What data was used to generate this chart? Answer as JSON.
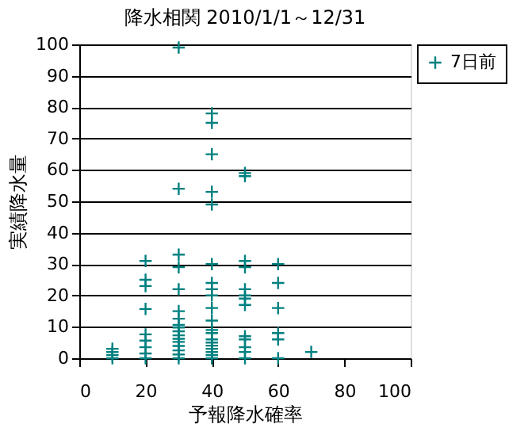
{
  "chart_data": {
    "type": "scatter",
    "title": "降水相関 2010/1/1～12/31",
    "xlabel": "予報降水確率",
    "ylabel": "実績降水量",
    "xlim": [
      0,
      100
    ],
    "xticks": [
      0,
      20,
      40,
      60,
      80,
      100
    ],
    "ylim": [
      0,
      100
    ],
    "yticks": [
      0,
      10,
      20,
      30,
      40,
      50,
      60,
      70,
      80,
      90,
      100
    ],
    "grid": "y",
    "legend": "right",
    "marker": "cross",
    "series": [
      {
        "name": "7日前",
        "color": "#008080",
        "x": [
          10,
          10,
          10,
          10,
          20,
          20,
          20,
          20,
          20,
          20,
          20,
          20,
          20,
          30,
          30,
          30,
          30,
          30,
          30,
          30,
          30,
          30,
          30,
          30,
          30,
          30,
          30,
          30,
          30,
          30,
          40,
          40,
          40,
          40,
          40,
          40,
          40,
          40,
          40,
          40,
          40,
          40,
          40,
          40,
          40,
          40,
          40,
          40,
          40,
          40,
          50,
          50,
          50,
          50,
          50,
          50,
          50,
          50,
          50,
          50,
          50,
          50,
          50,
          60,
          60,
          60,
          60,
          60,
          60,
          70
        ],
        "values": [
          0,
          1,
          2,
          3,
          0,
          1.5,
          3.5,
          5.6,
          7.6,
          15.7,
          23,
          25,
          31,
          99,
          54,
          33,
          29,
          22,
          15,
          12.6,
          10.6,
          9.8,
          8.6,
          7.3,
          6.2,
          5.2,
          3.9,
          2.5,
          1.2,
          0,
          78,
          75,
          65,
          53,
          49,
          30,
          24,
          22,
          20,
          16,
          12,
          9,
          8,
          6,
          5,
          4,
          3,
          2,
          1,
          0,
          59,
          58,
          31,
          29,
          22,
          20,
          19,
          17,
          7,
          6,
          3.5,
          2,
          0,
          30,
          24,
          16,
          8,
          6,
          0,
          2
        ]
      }
    ]
  }
}
